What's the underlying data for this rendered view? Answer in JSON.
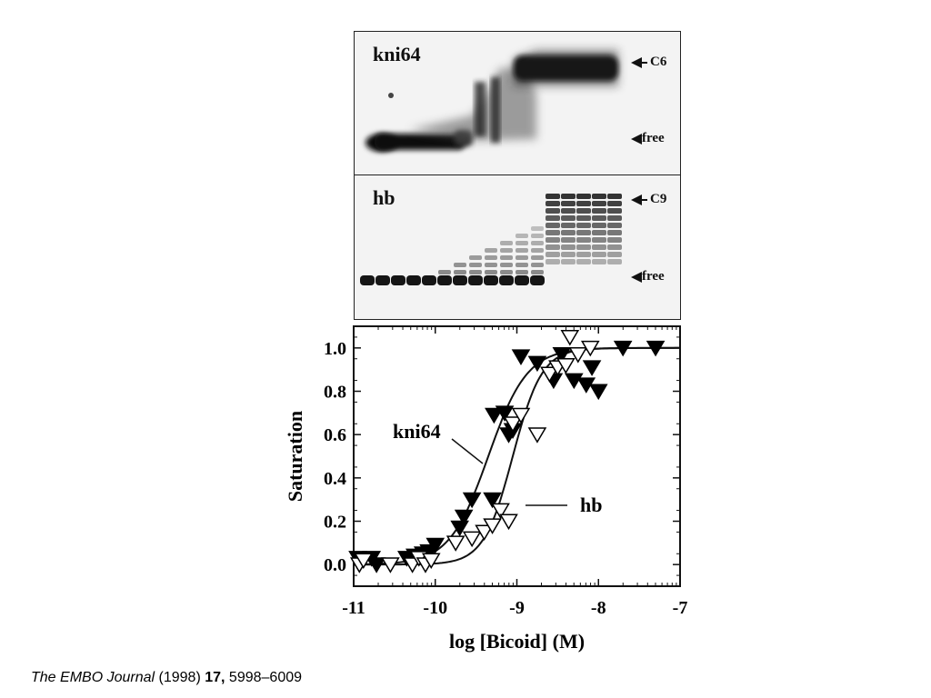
{
  "gels": {
    "top": {
      "title": "kni64",
      "labels": {
        "upper": "C6",
        "lower": "free"
      }
    },
    "bottom": {
      "title": "hb",
      "labels": {
        "upper": "C9",
        "lower": "free"
      }
    }
  },
  "citation": {
    "journal": "The EMBO Journal",
    "year": "(1998)",
    "volume": "17,",
    "pages": "5998–6009"
  },
  "chart_data": {
    "type": "scatter",
    "title": "",
    "xlabel": "log [Bicoid] (M)",
    "ylabel": "Saturation",
    "xlim": [
      -11,
      -7
    ],
    "ylim": [
      -0.1,
      1.1
    ],
    "xticks": [
      -11,
      -10,
      -9,
      -8,
      -7
    ],
    "xtick_labels": [
      "-11",
      "-10",
      "-9",
      "-8",
      "-7"
    ],
    "yticks": [
      0.0,
      0.2,
      0.4,
      0.6,
      0.8,
      1.0
    ],
    "ytick_labels": [
      "0.0",
      "0.2",
      "0.4",
      "0.6",
      "0.8",
      "1.0"
    ],
    "grid": false,
    "annotations": [
      {
        "text": "kni64",
        "series": "kni64"
      },
      {
        "text": "hb",
        "series": "hb"
      }
    ],
    "series": [
      {
        "name": "kni64",
        "marker": "filled-down-triangle",
        "color": "#000000",
        "x": [
          -10.95,
          -10.78,
          -10.72,
          -10.35,
          -10.25,
          -10.15,
          -10.08,
          -10.0,
          -9.7,
          -9.65,
          -9.55,
          -9.3,
          -9.28,
          -9.15,
          -9.1,
          -9.05,
          -8.95,
          -8.75,
          -8.55,
          -8.45,
          -8.3,
          -8.15,
          -8.08,
          -8.0,
          -7.7,
          -7.3
        ],
        "y": [
          0.03,
          0.03,
          0.0,
          0.03,
          0.04,
          0.05,
          0.06,
          0.09,
          0.17,
          0.22,
          0.3,
          0.3,
          0.69,
          0.7,
          0.6,
          0.62,
          0.96,
          0.93,
          0.85,
          0.97,
          0.85,
          0.83,
          0.91,
          0.8,
          1.0,
          1.0
        ],
        "fit_curve": {
          "form": "sigmoid",
          "midpoint_log_m": -9.35,
          "slope": 4.2
        }
      },
      {
        "name": "hb",
        "marker": "open-down-triangle",
        "color": "#000000",
        "x": [
          -10.93,
          -10.88,
          -10.55,
          -10.28,
          -10.2,
          -10.12,
          -10.05,
          -9.75,
          -9.55,
          -9.4,
          -9.3,
          -9.2,
          -9.1,
          -9.05,
          -8.95,
          -8.75,
          -8.6,
          -8.5,
          -8.4,
          -8.35,
          -8.25,
          -8.1
        ],
        "y": [
          0.0,
          0.02,
          0.0,
          0.0,
          0.03,
          0.0,
          0.02,
          0.1,
          0.12,
          0.15,
          0.18,
          0.25,
          0.2,
          0.65,
          0.69,
          0.6,
          0.88,
          0.91,
          0.92,
          1.05,
          0.97,
          1.0
        ],
        "fit_curve": {
          "form": "sigmoid",
          "midpoint_log_m": -9.05,
          "slope": 5.6
        }
      }
    ]
  }
}
